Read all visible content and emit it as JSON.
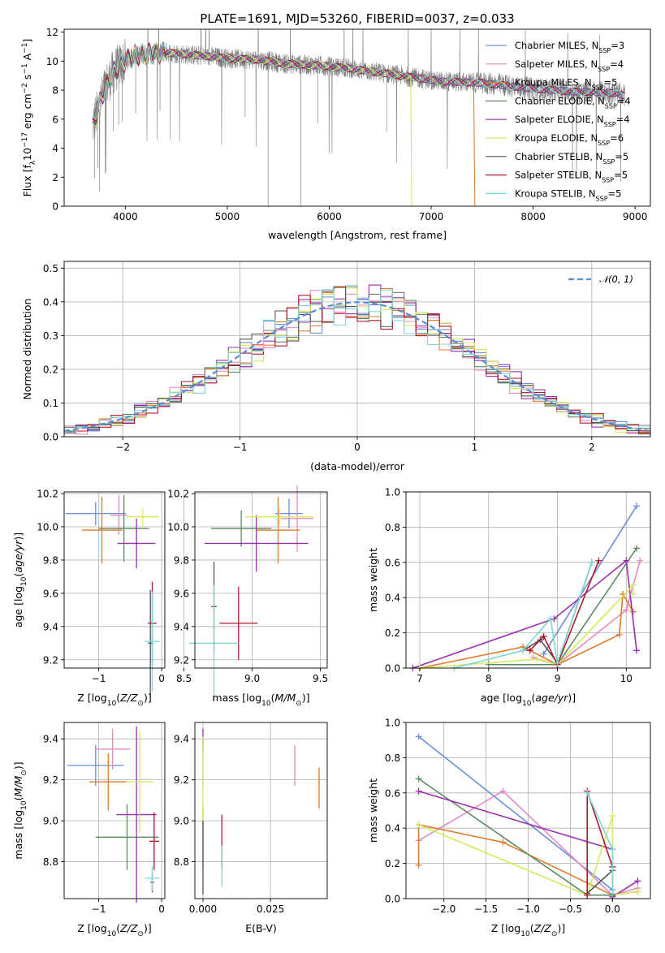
{
  "figure": {
    "title": "PLATE=1691, MJD=53260, FIBERID=0037, z=0.033"
  },
  "colors": {
    "chabrier_miles": "#6a8fdc",
    "salpeter_miles": "#e58ac2",
    "kroupa_miles": "#e07b2a",
    "chabrier_elodie": "#5e8a63",
    "salpeter_elodie": "#9b2fae",
    "kroupa_elodie": "#d6e85c",
    "chabrier_stelib": "#555555",
    "salpeter_stelib": "#b2182b",
    "kroupa_stelib": "#7fd6d6",
    "data": "#808080"
  },
  "chart_data": [
    {
      "id": "spectrum",
      "type": "line",
      "title": "PLATE=1691, MJD=53260, FIBERID=0037, z=0.033",
      "xlabel": "wavelength [Angstrom, rest frame]",
      "ylabel": "Flux [f_λ 10^-17 erg cm^-2 s^-1 A^-1]",
      "xlim": [
        3400,
        9150
      ],
      "ylim": [
        0,
        12.2
      ],
      "xticks": [
        "4000",
        "5000",
        "6000",
        "7000",
        "8000",
        "9000"
      ],
      "yticks": [
        "0",
        "2",
        "4",
        "6",
        "8",
        "10",
        "12"
      ],
      "grid": false,
      "legend_position": "top-right",
      "legend": [
        {
          "label": "Chabrier MILES, N",
          "sub": "SSP",
          "suffix": "=3",
          "color_key": "chabrier_miles"
        },
        {
          "label": "Salpeter MILES, N",
          "sub": "SSP",
          "suffix": "=4",
          "color_key": "salpeter_miles"
        },
        {
          "label": "Kroupa MILES, N",
          "sub": "SSP",
          "suffix": "=5",
          "color_key": "kroupa_miles"
        },
        {
          "label": "Chabrier ELODIE, N",
          "sub": "SSP",
          "suffix": "=4",
          "color_key": "chabrier_elodie"
        },
        {
          "label": "Salpeter ELODIE, N",
          "sub": "SSP",
          "suffix": "=4",
          "color_key": "salpeter_elodie"
        },
        {
          "label": "Kroupa ELODIE, N",
          "sub": "SSP",
          "suffix": "=6",
          "color_key": "kroupa_elodie"
        },
        {
          "label": "Chabrier STELIB, N",
          "sub": "SSP",
          "suffix": "=5",
          "color_key": "chabrier_stelib"
        },
        {
          "label": "Salpeter STELIB, N",
          "sub": "SSP",
          "suffix": "=5",
          "color_key": "salpeter_stelib"
        },
        {
          "label": "Kroupa STELIB, N",
          "sub": "SSP",
          "suffix": "=5",
          "color_key": "kroupa_stelib"
        }
      ],
      "model_continuum": {
        "x": [
          3680,
          3720,
          3800,
          3900,
          4000,
          4100,
          4200,
          4400,
          4700,
          5000,
          5300,
          5600,
          5900,
          6200,
          6500,
          6800,
          7100,
          7500,
          8000,
          8400,
          8800,
          8900
        ],
        "y": [
          5.5,
          6.4,
          8.2,
          9.4,
          10.0,
          10.4,
          10.5,
          10.6,
          10.4,
          10.2,
          10.1,
          9.8,
          9.7,
          9.5,
          9.2,
          8.9,
          8.6,
          8.5,
          8.1,
          7.9,
          7.8,
          7.6
        ]
      },
      "model_cutoffs": [
        {
          "color_key": "kroupa_elodie",
          "end_x": 6800
        },
        {
          "color_key": "kroupa_miles",
          "end_x": 7420
        }
      ]
    },
    {
      "id": "residuals",
      "type": "line",
      "xlabel": "(data-model)/error",
      "ylabel": "Normed distribution",
      "xlim": [
        -2.5,
        2.5
      ],
      "ylim": [
        0,
        0.52
      ],
      "xticks": [
        "-2",
        "-1",
        "0",
        "1",
        "2"
      ],
      "yticks": [
        "0.0",
        "0.1",
        "0.2",
        "0.3",
        "0.4",
        "0.5"
      ],
      "grid": true,
      "legend_position": "top-right",
      "legend": [
        {
          "label": "𝒩(0, 1)",
          "color": "#5b8bd4"
        }
      ],
      "series": [
        {
          "name": "N(0,1)",
          "type": "gaussian",
          "mu": 0,
          "sigma": 1
        }
      ],
      "histogram_bin_width": 0.1
    },
    {
      "id": "age_vs_z",
      "type": "scatter",
      "xlabel": "Z [log10(Z/Z⊙)]",
      "ylabel": "age [log10(age/yr)]",
      "xlim": [
        -1.55,
        0.05
      ],
      "ylim": [
        9.15,
        10.21
      ],
      "xticks": [
        "-1",
        "0"
      ],
      "yticks": [
        "9.2",
        "9.4",
        "9.6",
        "9.8",
        "10.0",
        "10.2"
      ],
      "grid": true,
      "points": [
        {
          "color_key": "chabrier_miles",
          "x": -1.05,
          "xerr": 0.48,
          "y": 10.08,
          "yerr": 0.07
        },
        {
          "color_key": "salpeter_miles",
          "x": -0.68,
          "xerr": 0.14,
          "y": 10.07,
          "yerr": 0.12
        },
        {
          "color_key": "kroupa_miles",
          "x": -0.95,
          "xerr": 0.32,
          "y": 9.98,
          "yerr": 0.2
        },
        {
          "color_key": "chabrier_elodie",
          "x": -0.6,
          "xerr": 0.4,
          "y": 9.99,
          "yerr": 0.2
        },
        {
          "color_key": "salpeter_elodie",
          "x": -0.4,
          "xerr": 0.3,
          "y": 9.9,
          "yerr": 0.15
        },
        {
          "color_key": "kroupa_elodie",
          "x": -0.3,
          "xerr": 0.25,
          "y": 10.06,
          "yerr": 0.05
        },
        {
          "color_key": "chabrier_stelib",
          "x": -0.18,
          "xerr": 0.04,
          "y": 9.3,
          "yerr": 0.32
        },
        {
          "color_key": "salpeter_stelib",
          "x": -0.15,
          "xerr": 0.07,
          "y": 9.42,
          "yerr": 0.25
        },
        {
          "color_key": "kroupa_stelib",
          "x": -0.15,
          "xerr": 0.12,
          "y": 9.31,
          "yerr": 0.3
        }
      ]
    },
    {
      "id": "age_vs_mass",
      "type": "scatter",
      "xlabel": "mass [log10(M/M⊙)]",
      "ylabel": "",
      "xlim": [
        8.58,
        9.55
      ],
      "ylim": [
        9.15,
        10.21
      ],
      "xticks": [
        "8.5",
        "9.0",
        "9.5"
      ],
      "yticks": [
        "9.2",
        "9.4",
        "9.6",
        "9.8",
        "10.0",
        "10.2"
      ],
      "grid": true,
      "points": [
        {
          "color_key": "chabrier_miles",
          "x": 9.27,
          "xerr": 0.1,
          "y": 10.08,
          "yerr": 0.09
        },
        {
          "color_key": "salpeter_miles",
          "x": 9.33,
          "xerr": 0.12,
          "y": 10.05,
          "yerr": 0.2
        },
        {
          "color_key": "kroupa_miles",
          "x": 9.19,
          "xerr": 0.16,
          "y": 9.98,
          "yerr": 0.2
        },
        {
          "color_key": "chabrier_elodie",
          "x": 8.92,
          "xerr": 0.22,
          "y": 9.99,
          "yerr": 0.11
        },
        {
          "color_key": "salpeter_elodie",
          "x": 9.03,
          "xerr": 0.38,
          "y": 9.9,
          "yerr": 0.17
        },
        {
          "color_key": "kroupa_elodie",
          "x": 9.2,
          "xerr": 0.25,
          "y": 10.06,
          "yerr": 0.05
        },
        {
          "color_key": "chabrier_stelib",
          "x": 8.72,
          "xerr": 0.02,
          "y": 9.52,
          "yerr": 0.27
        },
        {
          "color_key": "salpeter_stelib",
          "x": 8.9,
          "xerr": 0.14,
          "y": 9.42,
          "yerr": 0.22
        },
        {
          "color_key": "kroupa_stelib",
          "x": 8.72,
          "xerr": 0.18,
          "y": 9.3,
          "yerr": 0.35
        }
      ]
    },
    {
      "id": "weight_vs_age",
      "type": "line",
      "xlabel": "age [log10(age/yr)]",
      "ylabel": "mass weight",
      "xlim": [
        6.8,
        10.35
      ],
      "ylim": [
        0,
        1
      ],
      "xticks": [
        "7",
        "8",
        "9",
        "10"
      ],
      "yticks": [
        "0.0",
        "0.2",
        "0.4",
        "0.6",
        "0.8",
        "1.0"
      ],
      "grid": true,
      "series": [
        {
          "name": "Chabrier MILES",
          "color_key": "chabrier_miles",
          "x": [
            8.8,
            10.15
          ],
          "y": [
            0.08,
            0.92
          ]
        },
        {
          "name": "Salpeter MILES",
          "color_key": "salpeter_miles",
          "x": [
            8.65,
            9.0,
            10.0,
            10.2
          ],
          "y": [
            0.06,
            0.02,
            0.33,
            0.61
          ]
        },
        {
          "name": "Kroupa MILES",
          "color_key": "kroupa_miles",
          "x": [
            7.0,
            8.5,
            9.0,
            9.9,
            9.95,
            10.1
          ],
          "y": [
            0.0,
            0.12,
            0.02,
            0.19,
            0.42,
            0.32
          ]
        },
        {
          "name": "Chabrier ELODIE",
          "color_key": "chabrier_elodie",
          "x": [
            8.0,
            9.0,
            10.15
          ],
          "y": [
            0.02,
            0.02,
            0.68
          ]
        },
        {
          "name": "Salpeter ELODIE",
          "color_key": "salpeter_elodie",
          "x": [
            6.9,
            8.95,
            10.0,
            10.15
          ],
          "y": [
            0.0,
            0.28,
            0.61,
            0.1
          ]
        },
        {
          "name": "Kroupa ELODIE",
          "color_key": "kroupa_elodie",
          "x": [
            7.0,
            8.7,
            9.0,
            10.1,
            10.1
          ],
          "y": [
            0.0,
            0.05,
            0.02,
            0.47,
            0.42
          ]
        },
        {
          "name": "Chabrier STELIB",
          "color_key": "chabrier_stelib",
          "x": [
            8.5,
            8.75,
            9.0,
            9.5
          ],
          "y": [
            0.1,
            0.16,
            0.03,
            0.6
          ]
        },
        {
          "name": "Salpeter STELIB",
          "color_key": "salpeter_stelib",
          "x": [
            8.6,
            8.8,
            9.0,
            9.6
          ],
          "y": [
            0.1,
            0.18,
            0.02,
            0.61
          ]
        },
        {
          "name": "Kroupa STELIB",
          "color_key": "kroupa_stelib",
          "x": [
            7.5,
            8.5,
            8.9,
            9.0,
            9.5
          ],
          "y": [
            0.0,
            0.1,
            0.28,
            0.03,
            0.6
          ]
        }
      ]
    },
    {
      "id": "mass_vs_z",
      "type": "scatter",
      "xlabel": "Z [log10(Z/Z⊙)]",
      "ylabel": "mass [log10(M/M⊙)]",
      "xlim": [
        -1.55,
        0.05
      ],
      "ylim": [
        8.62,
        9.48
      ],
      "xticks": [
        "-1",
        "0"
      ],
      "yticks": [
        "8.8",
        "9.0",
        "9.2",
        "9.4"
      ],
      "grid": true,
      "points": [
        {
          "color_key": "chabrier_miles",
          "x": -1.05,
          "xerr": 0.45,
          "y": 9.27,
          "yerr": 0.1
        },
        {
          "color_key": "salpeter_miles",
          "x": -0.78,
          "xerr": 0.28,
          "y": 9.35,
          "yerr": 0.1
        },
        {
          "color_key": "kroupa_miles",
          "x": -0.85,
          "xerr": 0.3,
          "y": 9.19,
          "yerr": 0.14
        },
        {
          "color_key": "chabrier_elodie",
          "x": -0.55,
          "xerr": 0.5,
          "y": 8.92,
          "yerr": 0.16
        },
        {
          "color_key": "salpeter_elodie",
          "x": -0.4,
          "xerr": 0.32,
          "y": 9.03,
          "yerr": 0.43
        },
        {
          "color_key": "kroupa_elodie",
          "x": -0.35,
          "xerr": 0.22,
          "y": 9.19,
          "yerr": 0.25
        },
        {
          "color_key": "chabrier_stelib",
          "x": -0.15,
          "xerr": 0.03,
          "y": 8.7,
          "yerr": 0.05
        },
        {
          "color_key": "salpeter_stelib",
          "x": -0.12,
          "xerr": 0.08,
          "y": 8.9,
          "yerr": 0.14
        },
        {
          "color_key": "kroupa_stelib",
          "x": -0.15,
          "xerr": 0.12,
          "y": 8.72,
          "yerr": 0.06
        }
      ]
    },
    {
      "id": "mass_vs_ebv",
      "type": "scatter",
      "xlabel": "E(B-V)",
      "ylabel": "",
      "xlim": [
        -0.003,
        0.046
      ],
      "ylim": [
        8.62,
        9.48
      ],
      "xticks": [
        "0.000",
        "0.025"
      ],
      "yticks": [
        "8.8",
        "9.0",
        "9.2",
        "9.4"
      ],
      "grid": true,
      "points": [
        {
          "color_key": "chabrier_miles",
          "x": 0.0,
          "y": 9.27,
          "yerr": 0.1
        },
        {
          "color_key": "salpeter_miles",
          "x": 0.034,
          "y": 9.27,
          "yerr": 0.1
        },
        {
          "color_key": "kroupa_miles",
          "x": 0.043,
          "y": 9.16,
          "yerr": 0.1
        },
        {
          "color_key": "chabrier_elodie",
          "x": 0.0,
          "y": 8.92,
          "yerr": 0.15
        },
        {
          "color_key": "salpeter_elodie",
          "x": 0.0,
          "y": 9.4,
          "yerr": 0.05
        },
        {
          "color_key": "kroupa_elodie",
          "x": 0.0,
          "y": 9.19,
          "yerr": 0.22
        },
        {
          "color_key": "chabrier_stelib",
          "x": 0.0,
          "y": 8.82,
          "yerr": 0.18
        },
        {
          "color_key": "salpeter_stelib",
          "x": 0.007,
          "y": 8.9,
          "yerr": 0.13
        },
        {
          "color_key": "kroupa_stelib",
          "x": 0.007,
          "y": 8.78,
          "yerr": 0.1
        }
      ]
    },
    {
      "id": "weight_vs_z",
      "type": "line",
      "xlabel": "Z [log10(Z/Z⊙)]",
      "ylabel": "mass weight",
      "xlim": [
        -2.45,
        0.45
      ],
      "ylim": [
        0,
        1
      ],
      "xticks": [
        "-2.0",
        "-1.5",
        "-1.0",
        "-0.5",
        "0.0"
      ],
      "yticks": [
        "0.0",
        "0.2",
        "0.4",
        "0.6",
        "0.8",
        "1.0"
      ],
      "grid": true,
      "series": [
        {
          "name": "Chabrier MILES",
          "color_key": "chabrier_miles",
          "x": [
            -2.3,
            0.0,
            0.0
          ],
          "y": [
            0.92,
            0.05,
            0.02
          ]
        },
        {
          "name": "Salpeter MILES",
          "color_key": "salpeter_miles",
          "x": [
            -2.3,
            -1.3,
            0.0,
            0.3
          ],
          "y": [
            0.33,
            0.61,
            0.02,
            0.06
          ]
        },
        {
          "name": "Kroupa MILES",
          "color_key": "kroupa_miles",
          "x": [
            -2.3,
            -2.3,
            -1.3,
            0.0,
            0.3
          ],
          "y": [
            0.19,
            0.42,
            0.32,
            0.02,
            0.04
          ]
        },
        {
          "name": "Chabrier ELODIE",
          "color_key": "chabrier_elodie",
          "x": [
            -2.3,
            -0.3,
            0.0
          ],
          "y": [
            0.68,
            0.02,
            0.02
          ]
        },
        {
          "name": "Salpeter ELODIE",
          "color_key": "salpeter_elodie",
          "x": [
            -2.3,
            0.0,
            0.0,
            0.3
          ],
          "y": [
            0.61,
            0.28,
            0.01,
            0.1
          ]
        },
        {
          "name": "Kroupa ELODIE",
          "color_key": "kroupa_elodie",
          "x": [
            -2.3,
            -0.3,
            0.0,
            0.0,
            0.3
          ],
          "y": [
            0.42,
            0.02,
            0.47,
            0.02,
            0.04
          ]
        },
        {
          "name": "Chabrier STELIB",
          "color_key": "chabrier_stelib",
          "x": [
            -0.3,
            0.0,
            0.0
          ],
          "y": [
            0.03,
            0.16,
            0.02
          ]
        },
        {
          "name": "Salpeter STELIB",
          "color_key": "salpeter_stelib",
          "x": [
            -0.3,
            -0.3,
            0.0
          ],
          "y": [
            0.02,
            0.61,
            0.18
          ]
        },
        {
          "name": "Kroupa STELIB",
          "color_key": "kroupa_stelib",
          "x": [
            -0.3,
            0.0,
            0.0
          ],
          "y": [
            0.6,
            0.28,
            0.03
          ]
        }
      ]
    }
  ]
}
